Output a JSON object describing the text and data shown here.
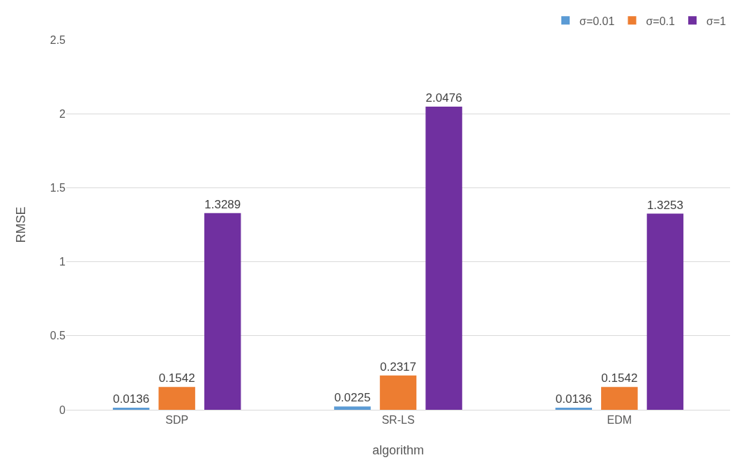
{
  "chart_data": {
    "type": "bar",
    "xlabel": "algorithm",
    "ylabel": "RMSE",
    "categories": [
      "SDP",
      "SR-LS",
      "EDM"
    ],
    "series": [
      {
        "name": "σ=0.01",
        "color": "#5b9bd5",
        "values": [
          0.0136,
          0.0225,
          0.0136
        ]
      },
      {
        "name": "σ=0.1",
        "color": "#ed7d31",
        "values": [
          0.1542,
          0.2317,
          0.1542
        ]
      },
      {
        "name": "σ=1",
        "color": "#7030a0",
        "values": [
          1.3289,
          2.0476,
          1.3253
        ]
      }
    ],
    "ylim": [
      0,
      2.5
    ],
    "yticks": [
      0,
      0.5,
      1,
      1.5,
      2,
      2.5
    ],
    "grid": "y",
    "legend": "top right",
    "data_labels": true
  }
}
